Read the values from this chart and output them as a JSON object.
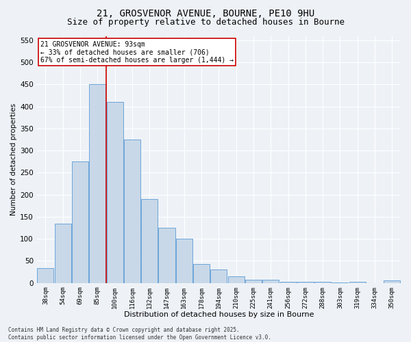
{
  "title_line1": "21, GROSVENOR AVENUE, BOURNE, PE10 9HU",
  "title_line2": "Size of property relative to detached houses in Bourne",
  "xlabel": "Distribution of detached houses by size in Bourne",
  "ylabel": "Number of detached properties",
  "categories": [
    "38sqm",
    "54sqm",
    "69sqm",
    "85sqm",
    "100sqm",
    "116sqm",
    "132sqm",
    "147sqm",
    "163sqm",
    "178sqm",
    "194sqm",
    "210sqm",
    "225sqm",
    "241sqm",
    "256sqm",
    "272sqm",
    "288sqm",
    "303sqm",
    "319sqm",
    "334sqm",
    "350sqm"
  ],
  "values": [
    33,
    135,
    275,
    450,
    410,
    325,
    190,
    125,
    100,
    43,
    30,
    15,
    7,
    8,
    3,
    2,
    2,
    1,
    2,
    0,
    6
  ],
  "bar_color": "#c8d8e8",
  "bar_edge_color": "#5b9bd5",
  "vline_x_index": 3.5,
  "vline_color": "#cc0000",
  "annotation_text": "21 GROSVENOR AVENUE: 93sqm\n← 33% of detached houses are smaller (706)\n67% of semi-detached houses are larger (1,444) →",
  "annotation_box_color": "#ffffff",
  "annotation_box_edge": "#cc0000",
  "ylim": [
    0,
    560
  ],
  "yticks": [
    0,
    50,
    100,
    150,
    200,
    250,
    300,
    350,
    400,
    450,
    500,
    550
  ],
  "background_color": "#eef2f7",
  "grid_color": "#ffffff",
  "footer_text": "Contains HM Land Registry data © Crown copyright and database right 2025.\nContains public sector information licensed under the Open Government Licence v3.0.",
  "title_fontsize": 10,
  "subtitle_fontsize": 9
}
